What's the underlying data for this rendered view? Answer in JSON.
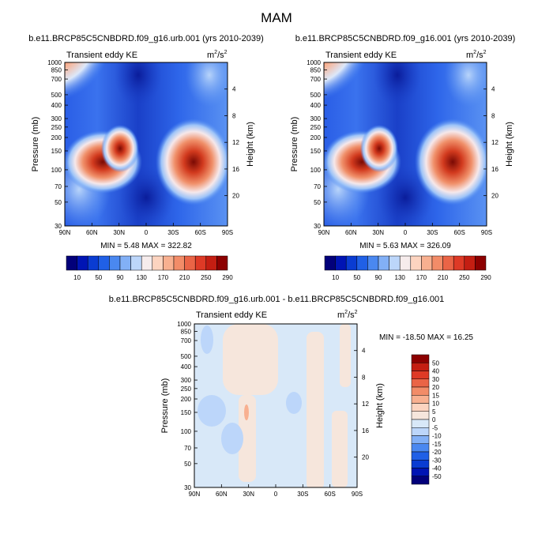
{
  "page": {
    "title": "MAM"
  },
  "chart_data": [
    {
      "type": "heatmap",
      "panel": "top-left",
      "title": "b.e11.BRCP85C5CNBDRD.f09_g16.urb.001 (yrs 2010-2039)",
      "subtitle_left": "Transient eddy KE",
      "units_base": "m",
      "units_sup1": "2",
      "units_mid": "/s",
      "units_sup2": "2",
      "xlabel": "",
      "ylabel": "Pressure (mb)",
      "ylabel_right": "Height (km)",
      "x_ticks": [
        "90N",
        "60N",
        "30N",
        "0",
        "30S",
        "60S",
        "90S"
      ],
      "y_ticks": [
        "30",
        "50",
        "70",
        "100",
        "150",
        "200",
        "250",
        "300",
        "400",
        "500",
        "700",
        "850",
        "1000"
      ],
      "y_ticks_right": [
        "20",
        "16",
        "12",
        "8",
        "4"
      ],
      "stats": "MIN =   5.48  MAX = 322.82",
      "colorbar_labels": [
        "10",
        "50",
        "90",
        "130",
        "170",
        "210",
        "250",
        "290"
      ],
      "colorbar_colors": [
        "#02007a",
        "#0014b4",
        "#0a3cd2",
        "#2060e6",
        "#4a88f0",
        "#82b0f6",
        "#bcd6fa",
        "#f6ecec",
        "#fcd4c0",
        "#f8b090",
        "#f28c68",
        "#ea6446",
        "#de3a26",
        "#c41e12",
        "#8c0000"
      ]
    },
    {
      "type": "heatmap",
      "panel": "top-right",
      "title": "b.e11.BRCP85C5CNBDRD.f09_g16.001 (yrs 2010-2039)",
      "subtitle_left": "Transient eddy KE",
      "units_base": "m",
      "units_sup1": "2",
      "units_mid": "/s",
      "units_sup2": "2",
      "ylabel": "Pressure (mb)",
      "ylabel_right": "Height (km)",
      "x_ticks": [
        "90N",
        "60N",
        "30N",
        "0",
        "30S",
        "60S",
        "90S"
      ],
      "y_ticks": [
        "30",
        "50",
        "70",
        "100",
        "150",
        "200",
        "250",
        "300",
        "400",
        "500",
        "700",
        "850",
        "1000"
      ],
      "y_ticks_right": [
        "20",
        "16",
        "12",
        "8",
        "4"
      ],
      "stats": "MIN =   5.63  MAX = 326.09",
      "colorbar_labels": [
        "10",
        "50",
        "90",
        "130",
        "170",
        "210",
        "250",
        "290"
      ]
    },
    {
      "type": "heatmap",
      "panel": "bottom",
      "title": "b.e11.BRCP85C5CNBDRD.f09_g16.urb.001 - b.e11.BRCP85C5CNBDRD.f09_g16.001",
      "subtitle_left": "Transient eddy KE",
      "units_base": "m",
      "units_sup1": "2",
      "units_mid": "/s",
      "units_sup2": "2",
      "ylabel": "Pressure (mb)",
      "ylabel_right": "Height (km)",
      "x_ticks": [
        "90N",
        "60N",
        "30N",
        "0",
        "30S",
        "60S",
        "90S"
      ],
      "y_ticks": [
        "30",
        "50",
        "70",
        "100",
        "150",
        "200",
        "250",
        "300",
        "400",
        "500",
        "700",
        "850",
        "1000"
      ],
      "y_ticks_right": [
        "20",
        "16",
        "12",
        "8",
        "4"
      ],
      "stats": "MIN = -18.50  MAX =  16.25",
      "colorbar_labels": [
        "50",
        "40",
        "30",
        "20",
        "15",
        "10",
        "5",
        "0",
        "-5",
        "-10",
        "-15",
        "-20",
        "-30",
        "-40",
        "-50"
      ],
      "colorbar_colors": [
        "#8c0000",
        "#c41e12",
        "#de3a26",
        "#ea6446",
        "#f28c68",
        "#f8b090",
        "#fcd4c0",
        "#f6e6dc",
        "#d8e8f8",
        "#bcd6fa",
        "#82b0f6",
        "#4a88f0",
        "#2060e6",
        "#0a3cd2",
        "#0014b4",
        "#02007a"
      ]
    }
  ]
}
